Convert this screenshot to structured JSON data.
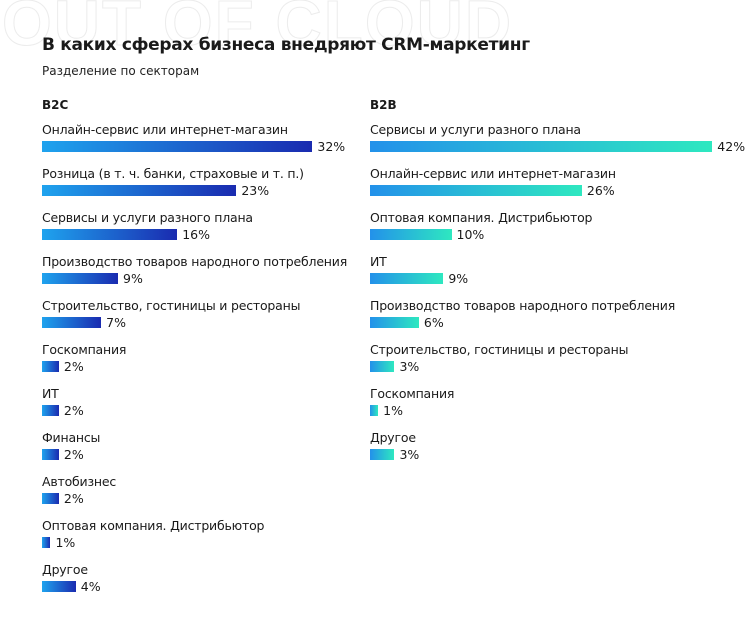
{
  "watermark": "OUT OF CLOUD",
  "chart_data": [
    {
      "type": "bar",
      "orientation": "horizontal",
      "title": "В каких сферах бизнеса внедряют CRM-маркетинг",
      "subtitle": "Разделение по секторам",
      "panel": "B2C",
      "unit": "%",
      "gradient": [
        "#1fa3ee",
        "#1a2bb0"
      ],
      "categories": [
        "Онлайн-сервис или интернет-магазин",
        "Розница (в т. ч. банки, страховые и т. п.)",
        "Сервисы и услуги разного плана",
        "Производство товаров народного потребления",
        "Строительство, гостиницы и рестораны",
        "Госкомпания",
        "ИТ",
        "Финансы",
        "Автобизнес",
        "Оптовая компания. Дистрибьютор",
        "Другое"
      ],
      "values": [
        32,
        23,
        16,
        9,
        7,
        2,
        2,
        2,
        2,
        1,
        4
      ]
    },
    {
      "type": "bar",
      "orientation": "horizontal",
      "panel": "B2B",
      "unit": "%",
      "gradient": [
        "#2391ea",
        "#2ee8c0"
      ],
      "categories": [
        "Сервисы и услуги разного плана",
        "Онлайн-сервис или интернет-магазин",
        "Оптовая компания. Дистрибьютор",
        "ИТ",
        "Производство товаров народного потребления",
        "Строительство, гостиницы и рестораны",
        "Госкомпания",
        "Другое"
      ],
      "values": [
        42,
        26,
        10,
        9,
        6,
        3,
        1,
        3
      ]
    }
  ]
}
